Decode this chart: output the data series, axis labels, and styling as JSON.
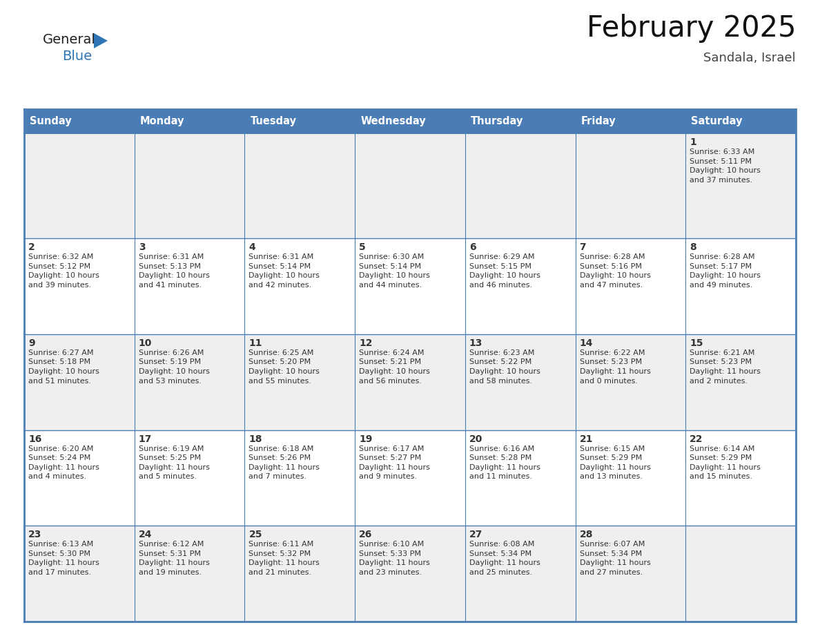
{
  "title": "February 2025",
  "subtitle": "Sandala, Israel",
  "header_bg": "#4A7DB5",
  "header_text_color": "#FFFFFF",
  "header_days": [
    "Sunday",
    "Monday",
    "Tuesday",
    "Wednesday",
    "Thursday",
    "Friday",
    "Saturday"
  ],
  "row0_bg": "#EFEFEF",
  "row_odd_bg": "#FFFFFF",
  "row_even_bg": "#EFEFEF",
  "border_color": "#4A7DB5",
  "text_color": "#333333",
  "logo_general_color": "#222222",
  "logo_blue_color": "#2E75B6",
  "calendar_data": [
    [
      {
        "day": null,
        "info": null
      },
      {
        "day": null,
        "info": null
      },
      {
        "day": null,
        "info": null
      },
      {
        "day": null,
        "info": null
      },
      {
        "day": null,
        "info": null
      },
      {
        "day": null,
        "info": null
      },
      {
        "day": 1,
        "info": "Sunrise: 6:33 AM\nSunset: 5:11 PM\nDaylight: 10 hours\nand 37 minutes."
      }
    ],
    [
      {
        "day": 2,
        "info": "Sunrise: 6:32 AM\nSunset: 5:12 PM\nDaylight: 10 hours\nand 39 minutes."
      },
      {
        "day": 3,
        "info": "Sunrise: 6:31 AM\nSunset: 5:13 PM\nDaylight: 10 hours\nand 41 minutes."
      },
      {
        "day": 4,
        "info": "Sunrise: 6:31 AM\nSunset: 5:14 PM\nDaylight: 10 hours\nand 42 minutes."
      },
      {
        "day": 5,
        "info": "Sunrise: 6:30 AM\nSunset: 5:14 PM\nDaylight: 10 hours\nand 44 minutes."
      },
      {
        "day": 6,
        "info": "Sunrise: 6:29 AM\nSunset: 5:15 PM\nDaylight: 10 hours\nand 46 minutes."
      },
      {
        "day": 7,
        "info": "Sunrise: 6:28 AM\nSunset: 5:16 PM\nDaylight: 10 hours\nand 47 minutes."
      },
      {
        "day": 8,
        "info": "Sunrise: 6:28 AM\nSunset: 5:17 PM\nDaylight: 10 hours\nand 49 minutes."
      }
    ],
    [
      {
        "day": 9,
        "info": "Sunrise: 6:27 AM\nSunset: 5:18 PM\nDaylight: 10 hours\nand 51 minutes."
      },
      {
        "day": 10,
        "info": "Sunrise: 6:26 AM\nSunset: 5:19 PM\nDaylight: 10 hours\nand 53 minutes."
      },
      {
        "day": 11,
        "info": "Sunrise: 6:25 AM\nSunset: 5:20 PM\nDaylight: 10 hours\nand 55 minutes."
      },
      {
        "day": 12,
        "info": "Sunrise: 6:24 AM\nSunset: 5:21 PM\nDaylight: 10 hours\nand 56 minutes."
      },
      {
        "day": 13,
        "info": "Sunrise: 6:23 AM\nSunset: 5:22 PM\nDaylight: 10 hours\nand 58 minutes."
      },
      {
        "day": 14,
        "info": "Sunrise: 6:22 AM\nSunset: 5:23 PM\nDaylight: 11 hours\nand 0 minutes."
      },
      {
        "day": 15,
        "info": "Sunrise: 6:21 AM\nSunset: 5:23 PM\nDaylight: 11 hours\nand 2 minutes."
      }
    ],
    [
      {
        "day": 16,
        "info": "Sunrise: 6:20 AM\nSunset: 5:24 PM\nDaylight: 11 hours\nand 4 minutes."
      },
      {
        "day": 17,
        "info": "Sunrise: 6:19 AM\nSunset: 5:25 PM\nDaylight: 11 hours\nand 5 minutes."
      },
      {
        "day": 18,
        "info": "Sunrise: 6:18 AM\nSunset: 5:26 PM\nDaylight: 11 hours\nand 7 minutes."
      },
      {
        "day": 19,
        "info": "Sunrise: 6:17 AM\nSunset: 5:27 PM\nDaylight: 11 hours\nand 9 minutes."
      },
      {
        "day": 20,
        "info": "Sunrise: 6:16 AM\nSunset: 5:28 PM\nDaylight: 11 hours\nand 11 minutes."
      },
      {
        "day": 21,
        "info": "Sunrise: 6:15 AM\nSunset: 5:29 PM\nDaylight: 11 hours\nand 13 minutes."
      },
      {
        "day": 22,
        "info": "Sunrise: 6:14 AM\nSunset: 5:29 PM\nDaylight: 11 hours\nand 15 minutes."
      }
    ],
    [
      {
        "day": 23,
        "info": "Sunrise: 6:13 AM\nSunset: 5:30 PM\nDaylight: 11 hours\nand 17 minutes."
      },
      {
        "day": 24,
        "info": "Sunrise: 6:12 AM\nSunset: 5:31 PM\nDaylight: 11 hours\nand 19 minutes."
      },
      {
        "day": 25,
        "info": "Sunrise: 6:11 AM\nSunset: 5:32 PM\nDaylight: 11 hours\nand 21 minutes."
      },
      {
        "day": 26,
        "info": "Sunrise: 6:10 AM\nSunset: 5:33 PM\nDaylight: 11 hours\nand 23 minutes."
      },
      {
        "day": 27,
        "info": "Sunrise: 6:08 AM\nSunset: 5:34 PM\nDaylight: 11 hours\nand 25 minutes."
      },
      {
        "day": 28,
        "info": "Sunrise: 6:07 AM\nSunset: 5:34 PM\nDaylight: 11 hours\nand 27 minutes."
      },
      {
        "day": null,
        "info": null
      }
    ]
  ],
  "header_fontsize": 10.5,
  "day_num_fontsize": 10,
  "info_fontsize": 8.0,
  "title_fontsize": 30,
  "subtitle_fontsize": 13
}
